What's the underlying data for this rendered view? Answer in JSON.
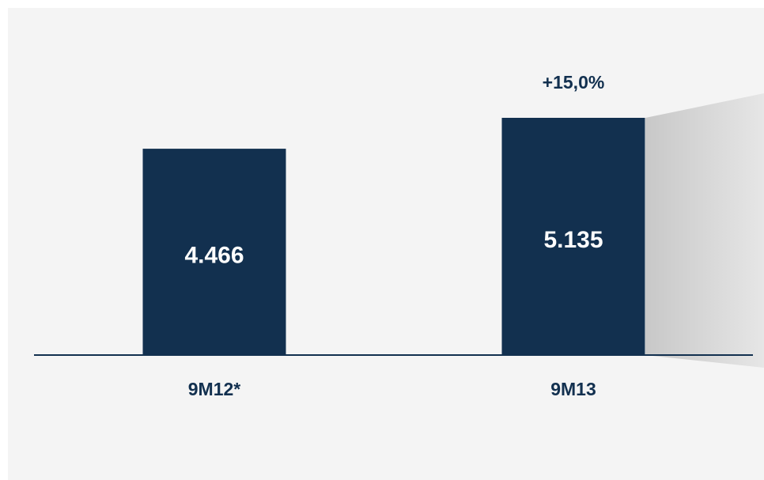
{
  "chart_data": {
    "type": "bar",
    "categories": [
      "9M12*",
      "9M13"
    ],
    "values": [
      4466,
      5135
    ],
    "value_labels": [
      "4.466",
      "5.135"
    ],
    "color": "#12304f",
    "annotation": "+15,0%"
  }
}
